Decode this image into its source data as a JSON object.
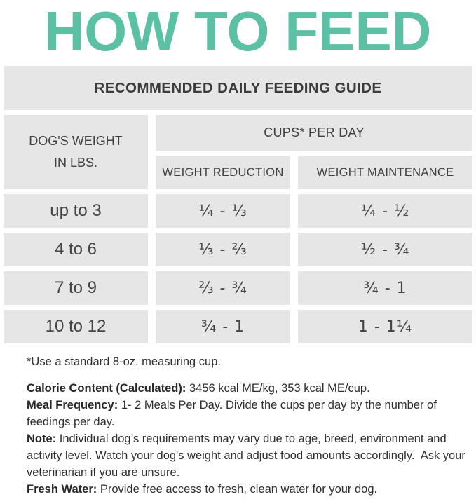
{
  "page": {
    "title": "HOW TO FEED"
  },
  "colors": {
    "accent_teal": "#5cc0a4",
    "cell_background": "#e6e6e6",
    "cell_text": "#474747",
    "body_text": "#2e2e2e"
  },
  "table": {
    "title": "RECOMMENDED DAILY FEEDING GUIDE",
    "weight_header_line1": "DOG'S WEIGHT",
    "weight_header_line2": "IN LBS.",
    "cups_header": "CUPS* PER DAY",
    "col_headers": [
      "WEIGHT REDUCTION",
      "WEIGHT MAINTENANCE"
    ],
    "rows": [
      {
        "weight": "up to 3",
        "reduction": "¼ - ⅓",
        "maintenance": "¼ - ½"
      },
      {
        "weight": "4 to 6",
        "reduction": "⅓ - ⅔",
        "maintenance": "½ - ¾"
      },
      {
        "weight": "7 to 9",
        "reduction": "⅔ - ¾",
        "maintenance": "¾ - 1"
      },
      {
        "weight": "10 to 12",
        "reduction": "¾ - 1",
        "maintenance": "1 - 1¼"
      }
    ]
  },
  "footnote": "*Use a standard 8-oz. measuring cup.",
  "info": [
    {
      "label": "Calorie Content (Calculated):",
      "text": "3456 kcal ME/kg, 353 kcal ME/cup."
    },
    {
      "label": "Meal Frequency:",
      "text": "1- 2 Meals Per Day. Divide the cups per day by the number of feedings per day."
    },
    {
      "label": "Note:",
      "text": "Individual dog’s requirements may vary due to age, breed, environment and activity level. Watch your dog's weight and adjust food amounts accordingly.  Ask your veterinarian if you are unsure."
    },
    {
      "label": "Fresh Water:",
      "text": "Provide free access to fresh, clean water for your dog."
    }
  ]
}
